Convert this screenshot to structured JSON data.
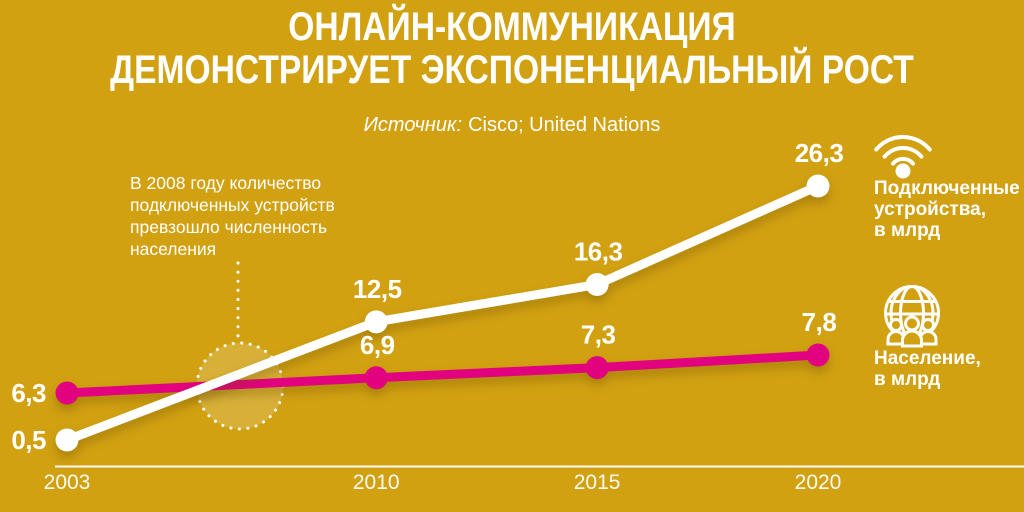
{
  "title": {
    "line1": "ОНЛАЙН-КОММУНИКАЦИЯ",
    "line2": "ДЕМОНСТРИРУЕТ ЭКСПОНЕНЦИАЛЬНЫЙ РОСТ"
  },
  "source": {
    "prefix": "Источник:",
    "text": "Cisco; United Nations"
  },
  "annotation": {
    "text": "В 2008 году количество\nподключенных устройств\nпревзошло численность\nнаселения"
  },
  "legend": {
    "devices": {
      "icon": "wifi-icon",
      "label": "Подключенные\nустройства,\nв млрд"
    },
    "population": {
      "icon": "globe-icon",
      "label": "Население,\nв млрд"
    }
  },
  "colors": {
    "background": "#D1A112",
    "devices_line": "#FFFFFF",
    "population_line": "#E2017E",
    "text": "#FFFFFF"
  },
  "chart_data": {
    "type": "line",
    "title": "ОНЛАЙН-КОММУНИКАЦИЯ ДЕМОНСТРИРУЕТ ЭКСПОНЕНЦИАЛЬНЫЙ РОСТ",
    "source": "Cisco; United Nations",
    "x": [
      2003,
      2010,
      2015,
      2020
    ],
    "x_tick_labels": [
      "2003",
      "2010",
      "2015",
      "2020"
    ],
    "grid": false,
    "legend_position": "right",
    "series": [
      {
        "name": "Подключенные устройства, в млрд",
        "color": "#FFFFFF",
        "values": [
          0.5,
          12.5,
          16.3,
          26.3
        ],
        "point_labels": [
          "0,5",
          "12,5",
          "16,3",
          "26,3"
        ]
      },
      {
        "name": "Население, в млрд",
        "color": "#E2017E",
        "values": [
          6.3,
          6.9,
          7.3,
          7.8
        ],
        "point_labels": [
          "6,3",
          "6,9",
          "7,3",
          "7,8"
        ]
      }
    ],
    "annotations": [
      {
        "type": "crossover-highlight",
        "x": 2008,
        "note": "В 2008 году количество подключенных устройств превзошло численность населения"
      }
    ]
  }
}
